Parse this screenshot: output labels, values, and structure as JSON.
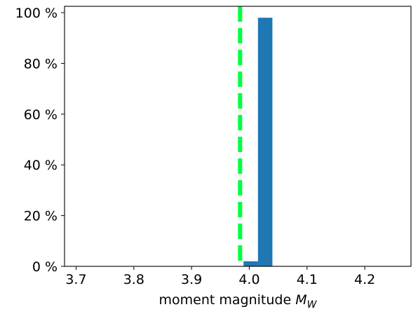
{
  "chart_data": {
    "type": "bar",
    "xlabel": {
      "text": "moment magnitude ",
      "math": "M",
      "sub": "W"
    },
    "ylabel": "",
    "title": "",
    "xlim": [
      3.68,
      4.28
    ],
    "ylim": [
      0,
      102.5
    ],
    "xticks": [
      {
        "value": 3.7,
        "label": "3.7"
      },
      {
        "value": 3.8,
        "label": "3.8"
      },
      {
        "value": 3.9,
        "label": "3.9"
      },
      {
        "value": 4.0,
        "label": "4.0"
      },
      {
        "value": 4.1,
        "label": "4.1"
      },
      {
        "value": 4.2,
        "label": "4.2"
      }
    ],
    "yticks": [
      {
        "value": 0,
        "label": "0 %"
      },
      {
        "value": 20,
        "label": "20 %"
      },
      {
        "value": 40,
        "label": "40 %"
      },
      {
        "value": 60,
        "label": "60 %"
      },
      {
        "value": 80,
        "label": "80 %"
      },
      {
        "value": 100,
        "label": "100 %"
      }
    ],
    "bars": [
      {
        "x0": 3.99,
        "x1": 4.015,
        "value": 2
      },
      {
        "x0": 4.015,
        "x1": 4.04,
        "value": 98
      }
    ],
    "reference_line": {
      "x": 3.984,
      "style": "dashed"
    },
    "grid": false,
    "colors": {
      "bar": "#1f77b4",
      "reference_line": "#00ff40"
    }
  }
}
